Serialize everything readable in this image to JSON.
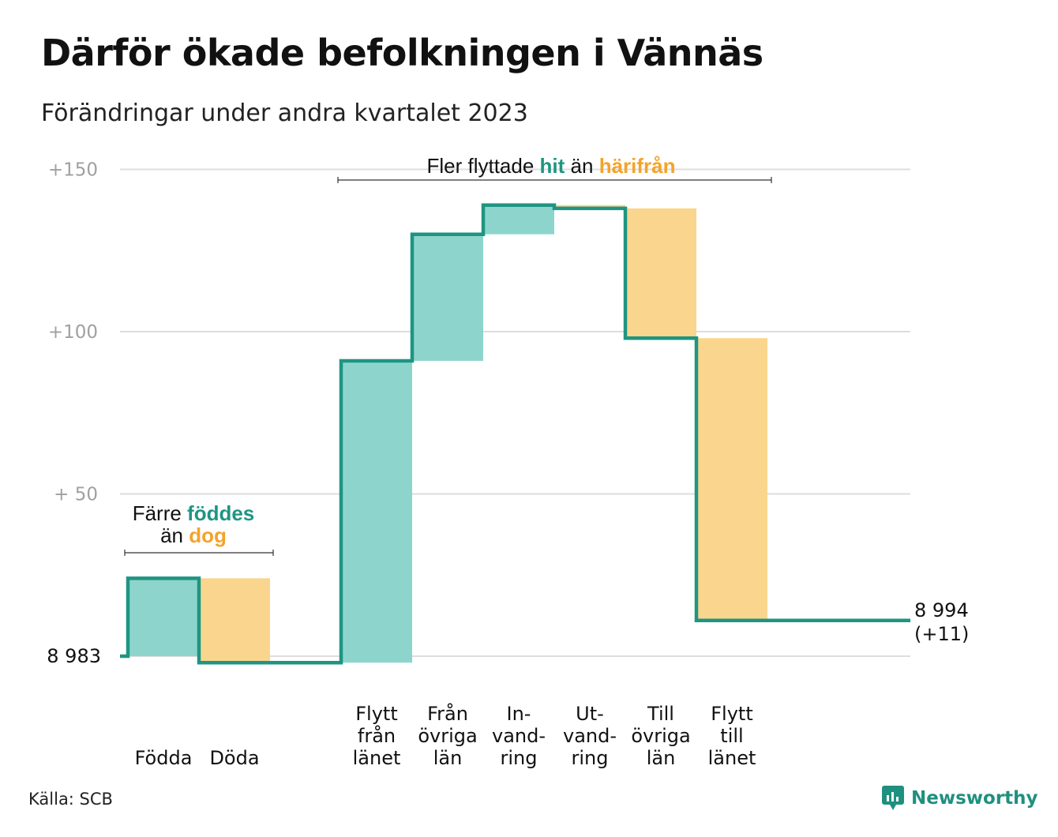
{
  "title": "Därför ökade befolkningen i Vännäs",
  "subtitle": "Förändringar under andra kvartalet 2023",
  "source": "Källa: SCB",
  "brand": {
    "name": "Newsworthy",
    "icon": "newsworthy-logo-icon",
    "color": "#1f9080"
  },
  "colors": {
    "increase_fill": "#8dd5cc",
    "decrease_fill": "#fad58e",
    "line": "#1e9582",
    "increase_text": "#1e9582",
    "decrease_text": "#f4a32b",
    "grid": "#dddddd"
  },
  "annotations": {
    "births": {
      "line1_prefix": "Färre ",
      "line1_highlight": "föddes",
      "line2_prefix": "än ",
      "line2_highlight": "dog"
    },
    "moves": {
      "prefix": "Fler flyttade ",
      "highlight1": "hit",
      "middle": " än ",
      "highlight2": "härifrån"
    }
  },
  "chart_data": {
    "type": "waterfall",
    "base_value": 8983,
    "base_label": "8  983",
    "end_label": "8 994",
    "end_change_label": "(+11)",
    "y_ticks": [
      {
        "value": 50,
        "label": "+  50"
      },
      {
        "value": 100,
        "label": "+100"
      },
      {
        "value": 150,
        "label": "+150"
      }
    ],
    "ylim": [
      -5,
      150
    ],
    "grid": true,
    "steps": [
      {
        "label_lines": [
          "Födda"
        ],
        "change": 24
      },
      {
        "label_lines": [
          "Döda"
        ],
        "change": -26
      },
      {
        "label_lines": [
          "Flytt",
          "från",
          "länet"
        ],
        "change": 93
      },
      {
        "label_lines": [
          "Från",
          "övriga",
          "län"
        ],
        "change": 39
      },
      {
        "label_lines": [
          "In-",
          "vand-",
          "ring"
        ],
        "change": 9
      },
      {
        "label_lines": [
          "Ut-",
          "vand-",
          "ring"
        ],
        "change": -1
      },
      {
        "label_lines": [
          "Till",
          "övriga",
          "län"
        ],
        "change": -40
      },
      {
        "label_lines": [
          "Flytt",
          "till",
          "länet"
        ],
        "change": -87
      }
    ],
    "total_change": 11
  }
}
